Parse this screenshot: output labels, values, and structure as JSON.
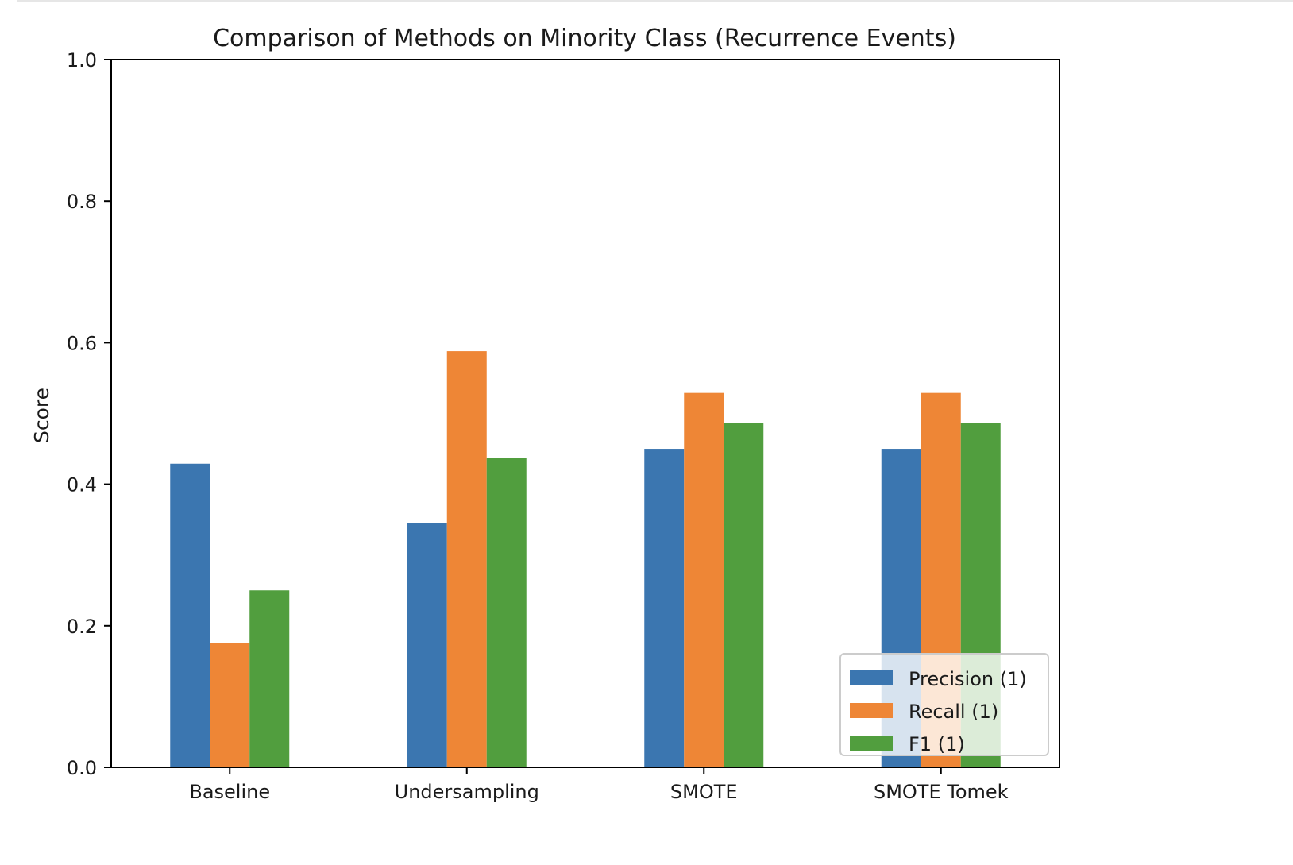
{
  "chart_data": {
    "type": "bar",
    "title": "Comparison of Methods on Minority Class (Recurrence Events)",
    "xlabel": "",
    "ylabel": "Score",
    "ylim": [
      0,
      1.0
    ],
    "yticks": [
      "0.0",
      "0.2",
      "0.4",
      "0.6",
      "0.8",
      "1.0"
    ],
    "grid": false,
    "legend_position": "lower-right",
    "categories": [
      "Baseline",
      "Undersampling",
      "SMOTE",
      "SMOTE Tomek"
    ],
    "series": [
      {
        "name": "Precision (1)",
        "color": "#3b76b0",
        "values": [
          0.429,
          0.345,
          0.45,
          0.45
        ]
      },
      {
        "name": "Recall (1)",
        "color": "#ee8636",
        "values": [
          0.176,
          0.588,
          0.529,
          0.529
        ]
      },
      {
        "name": "F1 (1)",
        "color": "#519e3e",
        "values": [
          0.25,
          0.437,
          0.486,
          0.486
        ]
      }
    ]
  }
}
